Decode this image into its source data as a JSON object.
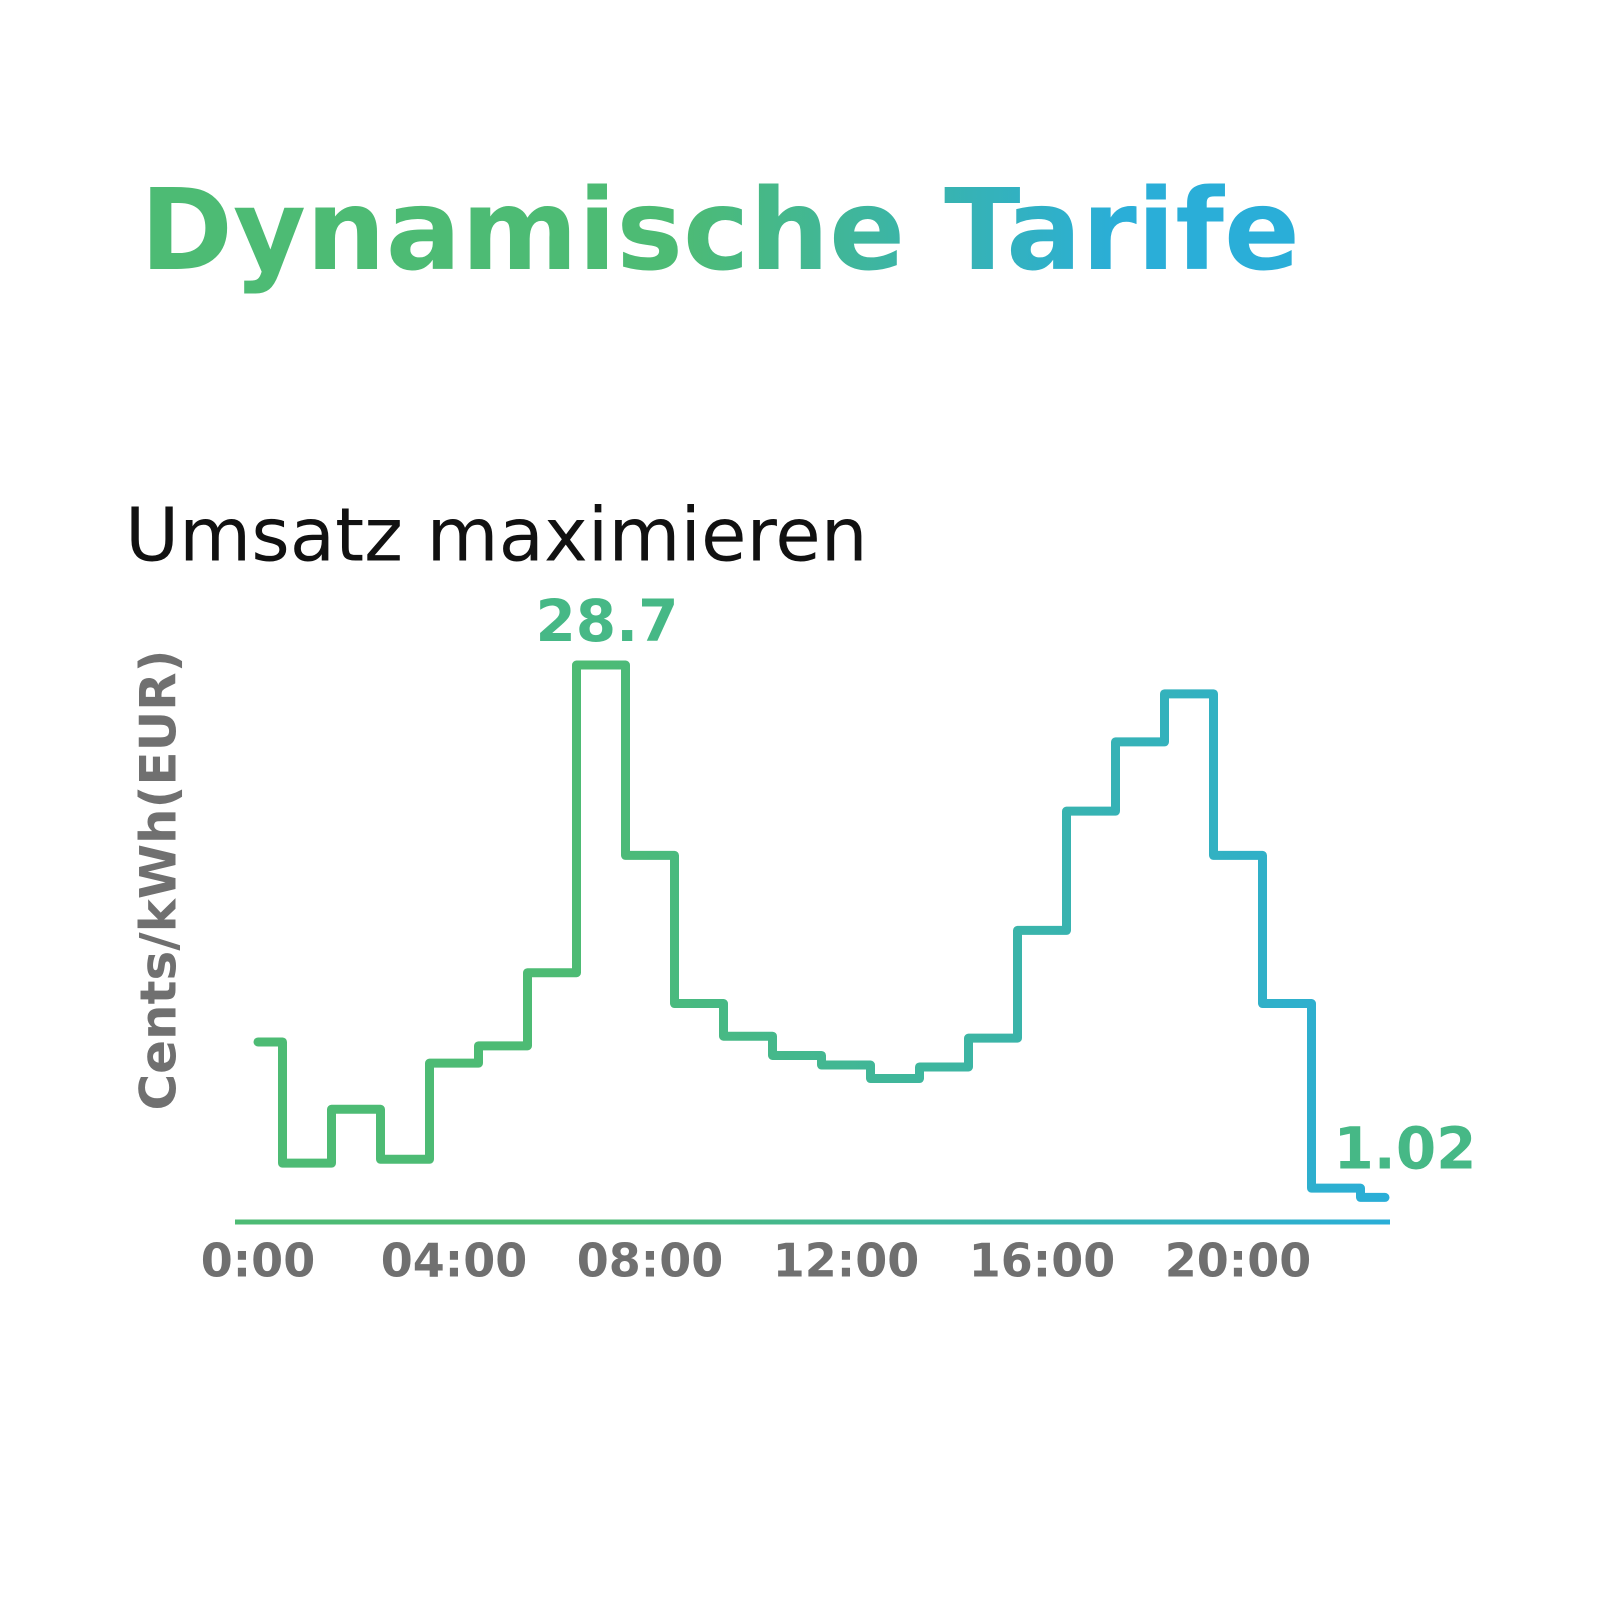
{
  "chart_data": {
    "type": "step",
    "title": "Dynamische Tarife",
    "subtitle": "Umsatz maximieren",
    "y_label": "Cents/kWh(EUR)",
    "x": [
      0,
      1,
      2,
      3,
      4,
      5,
      6,
      7,
      8,
      9,
      10,
      11,
      12,
      13,
      14,
      15,
      16,
      17,
      18,
      19,
      20,
      21,
      22,
      23
    ],
    "values": [
      9.1,
      2.8,
      5.6,
      3.0,
      8.0,
      8.9,
      12.7,
      28.7,
      18.8,
      11.1,
      9.4,
      8.4,
      7.9,
      7.2,
      7.8,
      9.3,
      14.9,
      21.1,
      24.7,
      27.2,
      18.8,
      11.1,
      1.5,
      1.02
    ],
    "value_labels": [
      null,
      null,
      null,
      null,
      null,
      null,
      null,
      "28.7",
      null,
      null,
      null,
      null,
      null,
      null,
      null,
      null,
      null,
      null,
      null,
      null,
      null,
      null,
      null,
      "1.02"
    ],
    "colors": [
      "#4dbb74",
      "#2aaed8"
    ],
    "xlim": [
      0,
      23
    ],
    "xticks": [
      {
        "value": 0,
        "label": "0:00"
      },
      {
        "value": 4,
        "label": "04:00"
      },
      {
        "value": 8,
        "label": "08:00"
      },
      {
        "value": 12,
        "label": "12:00"
      },
      {
        "value": 16,
        "label": "16:00"
      },
      {
        "value": 20,
        "label": "20:00"
      }
    ],
    "ylim": [
      0,
      30
    ]
  }
}
